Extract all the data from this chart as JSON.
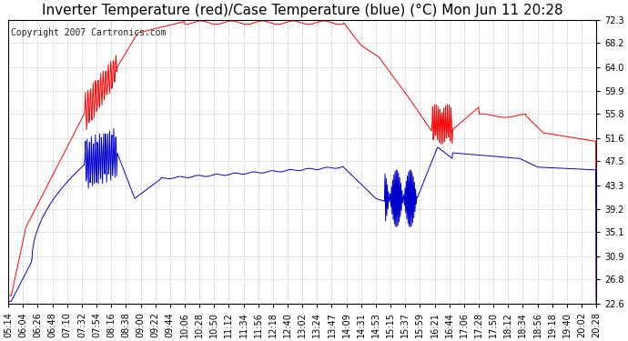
{
  "title": "Inverter Temperature (red)/Case Temperature (blue) (°C) Mon Jun 11 20:28",
  "copyright_text": "Copyright 2007 Cartronics.com",
  "background_color": "#ffffff",
  "grid_color": "#c8c8c8",
  "line_color_red": "#ff0000",
  "line_color_blue": "#0000cc",
  "yticks": [
    22.6,
    26.8,
    30.9,
    35.1,
    39.2,
    43.3,
    47.5,
    51.6,
    55.8,
    59.9,
    64.0,
    68.2,
    72.3
  ],
  "ylim": [
    22.6,
    72.3
  ],
  "x_labels": [
    "05:14",
    "06:04",
    "06:26",
    "06:48",
    "07:10",
    "07:32",
    "07:54",
    "08:16",
    "08:38",
    "09:00",
    "09:22",
    "09:44",
    "10:06",
    "10:28",
    "10:50",
    "11:12",
    "11:34",
    "11:56",
    "12:18",
    "12:40",
    "13:02",
    "13:24",
    "13:47",
    "14:09",
    "14:31",
    "14:53",
    "15:15",
    "15:37",
    "15:59",
    "16:21",
    "16:44",
    "17:06",
    "17:28",
    "17:50",
    "18:12",
    "18:34",
    "18:56",
    "19:18",
    "19:40",
    "20:02",
    "20:28"
  ],
  "title_fontsize": 11,
  "tick_fontsize": 7,
  "copyright_fontsize": 7
}
